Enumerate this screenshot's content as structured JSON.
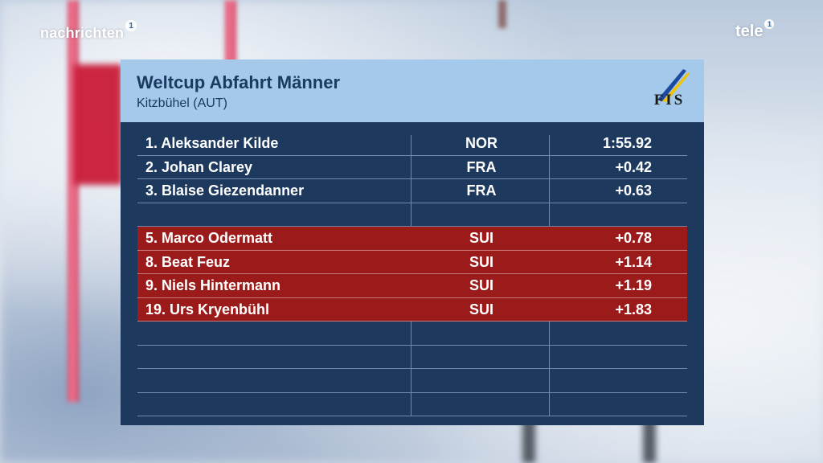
{
  "channel": {
    "left_logo_text": "nachrichten",
    "left_logo_badge": "1",
    "right_logo_text": "tele",
    "right_logo_badge": "1"
  },
  "panel": {
    "title": "Weltcup Abfahrt Männer",
    "subtitle": "Kitzbühel (AUT)",
    "logo_text": "FIS",
    "logo_icon": "fis-logo"
  },
  "results": [
    {
      "rank_name": "1. Aleksander Kilde",
      "nation": "NOR",
      "time": "1:55.92",
      "highlight": false
    },
    {
      "rank_name": "2. Johan Clarey",
      "nation": "FRA",
      "time": "+0.42",
      "highlight": false
    },
    {
      "rank_name": "3. Blaise Giezendanner",
      "nation": "FRA",
      "time": "+0.63",
      "highlight": false
    },
    {
      "rank_name": "",
      "nation": "",
      "time": "",
      "highlight": false
    },
    {
      "rank_name": "5. Marco Odermatt",
      "nation": "SUI",
      "time": "+0.78",
      "highlight": true
    },
    {
      "rank_name": "8. Beat Feuz",
      "nation": "SUI",
      "time": "+1.14",
      "highlight": true
    },
    {
      "rank_name": "9. Niels Hintermann",
      "nation": "SUI",
      "time": "+1.19",
      "highlight": true
    },
    {
      "rank_name": "19. Urs Kryenbühl",
      "nation": "SUI",
      "time": "+1.83",
      "highlight": true
    },
    {
      "rank_name": "",
      "nation": "",
      "time": "",
      "highlight": false
    },
    {
      "rank_name": "",
      "nation": "",
      "time": "",
      "highlight": false
    },
    {
      "rank_name": "",
      "nation": "",
      "time": "",
      "highlight": false
    },
    {
      "rank_name": "",
      "nation": "",
      "time": "",
      "highlight": false
    }
  ],
  "colors": {
    "panel_bg": "#1d3a5e",
    "header_bg": "#a5c9ea",
    "highlight_row": "#9b1b1b",
    "title_text": "#1b3a62"
  }
}
